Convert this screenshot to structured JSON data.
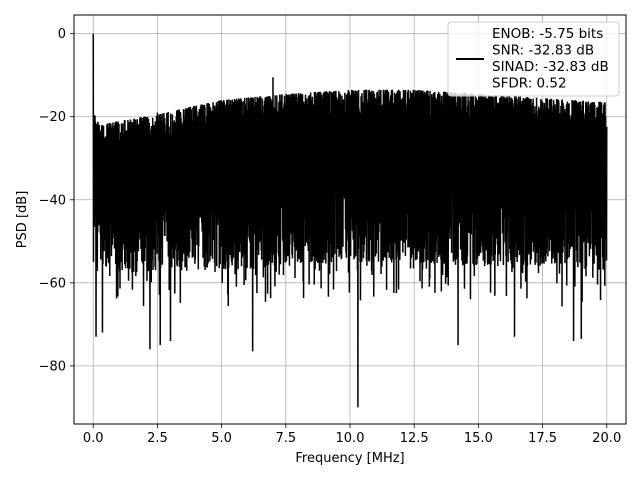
{
  "chart_data": {
    "type": "line",
    "title": "",
    "xlabel": "Frequency [MHz]",
    "ylabel": "PSD [dB]",
    "xlim": [
      -0.75,
      20.75
    ],
    "ylim": [
      -94,
      4.5
    ],
    "xticks": [
      0.0,
      2.5,
      5.0,
      7.5,
      10.0,
      12.5,
      15.0,
      17.5,
      20.0
    ],
    "xtick_labels": [
      "0.0",
      "2.5",
      "5.0",
      "7.5",
      "10.0",
      "12.5",
      "15.0",
      "17.5",
      "20.0"
    ],
    "yticks": [
      0,
      -20,
      -40,
      -60,
      -80
    ],
    "ytick_labels": [
      "0",
      "−20",
      "−40",
      "−60",
      "−80"
    ],
    "grid": true,
    "legend_position": "top-right",
    "line_color": "#000000",
    "series": [
      {
        "name": "ENOB: -5.75 bits\nSNR: -32.83 dB\nSINAD: -32.83 dB\nSFDR: 0.52",
        "legend_lines": [
          "ENOB: -5.75 bits",
          "SNR: -32.83 dB",
          "SINAD: -32.83 dB",
          "SFDR: 0.52"
        ],
        "x_range": [
          0.0,
          20.0
        ],
        "upper_envelope": [
          [
            0.0,
            -19
          ],
          [
            0.25,
            -22
          ],
          [
            1.0,
            -21
          ],
          [
            2.5,
            -19.5
          ],
          [
            3.5,
            -18
          ],
          [
            5.0,
            -16
          ],
          [
            7.5,
            -14.5
          ],
          [
            10.0,
            -13.5
          ],
          [
            12.5,
            -13.5
          ],
          [
            15.0,
            -14.5
          ],
          [
            17.5,
            -15.5
          ],
          [
            20.0,
            -16.5
          ]
        ],
        "lower_envelope": [
          [
            0.0,
            -55
          ],
          [
            1.0,
            -58
          ],
          [
            2.5,
            -57
          ],
          [
            5.0,
            -57
          ],
          [
            7.5,
            -56
          ],
          [
            10.0,
            -55
          ],
          [
            12.5,
            -55
          ],
          [
            15.0,
            -56
          ],
          [
            17.5,
            -56
          ],
          [
            20.0,
            -57
          ]
        ],
        "peaks": [
          [
            0.0,
            0.0
          ],
          [
            7.0,
            -10.5
          ],
          [
            2.5,
            -19.0
          ]
        ],
        "dips": [
          [
            0.1,
            -73
          ],
          [
            0.35,
            -72
          ],
          [
            2.2,
            -76
          ],
          [
            2.6,
            -75
          ],
          [
            3.0,
            -74
          ],
          [
            6.2,
            -76.5
          ],
          [
            10.3,
            -90
          ],
          [
            14.2,
            -75
          ],
          [
            16.4,
            -73
          ],
          [
            18.7,
            -74
          ],
          [
            19.0,
            -73.5
          ]
        ]
      }
    ]
  }
}
